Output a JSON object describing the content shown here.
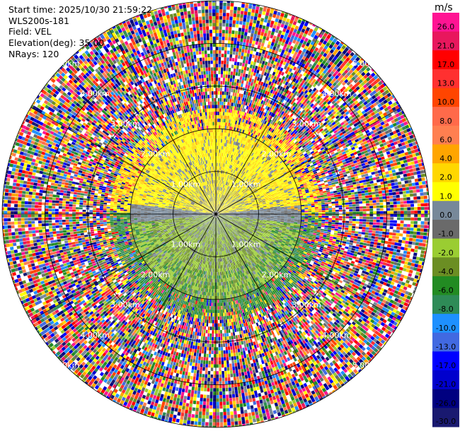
{
  "info": {
    "start_time": "Start time: 2025/10/30 21:59:22",
    "instrument": "WLS200s-181",
    "field": "Field: VEL",
    "elevation": "Elevation(deg): 35.00",
    "nrays": "NRays: 120"
  },
  "chart_data": {
    "type": "heatmap",
    "subtype": "polar PPI (plan position indicator)",
    "field": "VEL",
    "units": "m/s",
    "elevation_deg": 35.0,
    "n_rays": 120,
    "range_rings_km": [
      1.0,
      2.0,
      3.0,
      4.0,
      5.0
    ],
    "ring_labels": [
      "1.00km",
      "2.00km",
      "3.00km",
      "4.00km",
      "5.00km"
    ],
    "max_range_km": 5.0,
    "radial_spokes_deg": [
      0,
      30,
      60,
      90,
      120,
      150,
      180,
      210,
      240,
      270,
      300,
      330
    ],
    "pattern": {
      "inner_radius_km": 0.0,
      "clean_signal_radius_km": 2.0,
      "noise_start_radius_km": 2.5,
      "north_half": "positive velocities 0.0 to 4.0 m/s (yellow) with near-zero gray core",
      "south_half": "negative velocities -1.0 to -4.0 m/s (olive/green) with near-zero gray core",
      "far_range": "random noise spanning full scale -30 to 30 m/s"
    },
    "colorbar": {
      "title": "m/s",
      "ticks": [
        "26.0",
        "21.0",
        "17.0",
        "13.0",
        "10.0",
        "8.0",
        "6.0",
        "4.0",
        "2.0",
        "1.0",
        "0.0",
        "-1.0",
        "-2.0",
        "-4.0",
        "-6.0",
        "-8.0",
        "-10.0",
        "-13.0",
        "-17.0",
        "-21.0",
        "-26.0",
        "-30.0"
      ],
      "colors": [
        "#ff1493",
        "#e8175d",
        "#ff0000",
        "#ff3030",
        "#ff4500",
        "#ff6a4a",
        "#ff7f50",
        "#ffa500",
        "#ffd700",
        "#ffff00",
        "#778899",
        "#6a6a6a",
        "#9acd32",
        "#6b8e23",
        "#228b22",
        "#2e8b57",
        "#1e90ff",
        "#4169e1",
        "#0000ff",
        "#0000cd",
        "#000080",
        "#191970"
      ]
    }
  }
}
